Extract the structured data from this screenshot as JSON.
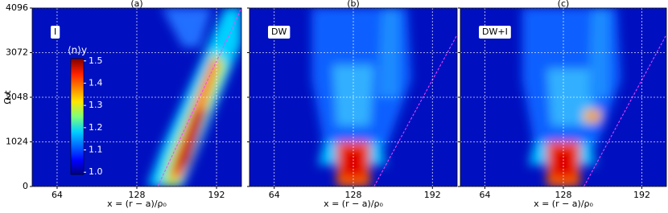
{
  "chart_data": [
    {
      "type": "heatmap",
      "title": "(a)",
      "label": "I",
      "xlabel": "x = (r − a)/ρ₀",
      "ylabel": "Ω₀t",
      "xlim": [
        44,
        212
      ],
      "xticks": [
        64,
        128,
        192
      ],
      "ylim": [
        0,
        4096
      ],
      "yticks": [
        0,
        1024,
        2048,
        3072,
        4096
      ],
      "grid": true,
      "colorbar": {
        "label": "⟨n⟩y",
        "clim": [
          0.99,
          1.51
        ],
        "ticks": [
          {
            "value": 1,
            "label": "1.0"
          },
          {
            "value": 1.1,
            "label": "1.1"
          },
          {
            "value": 1.2,
            "label": "1.2"
          },
          {
            "value": 1.3,
            "label": "1.3"
          },
          {
            "value": 1.4,
            "label": "1.4"
          },
          {
            "value": 1.5,
            "label": "1.5"
          }
        ]
      }
    },
    {
      "type": "heatmap",
      "title": "(b)",
      "label": "DW",
      "xlabel": "x = (r − a)/ρ₀",
      "xlim": [
        44,
        212
      ],
      "xticks": [
        64,
        128,
        192
      ],
      "ylim": [
        0,
        4096
      ],
      "yticks": [
        0,
        1024,
        2048,
        3072,
        4096
      ],
      "grid": true
    },
    {
      "type": "heatmap",
      "title": "(c)",
      "label": "DW+I",
      "xlabel": "x = (r − a)/ρ₀",
      "xlim": [
        44,
        212
      ],
      "xticks": [
        64,
        128,
        192
      ],
      "ylim": [
        0,
        4096
      ],
      "yticks": [
        0,
        1024,
        2048,
        3072,
        4096
      ],
      "grid": true
    }
  ]
}
